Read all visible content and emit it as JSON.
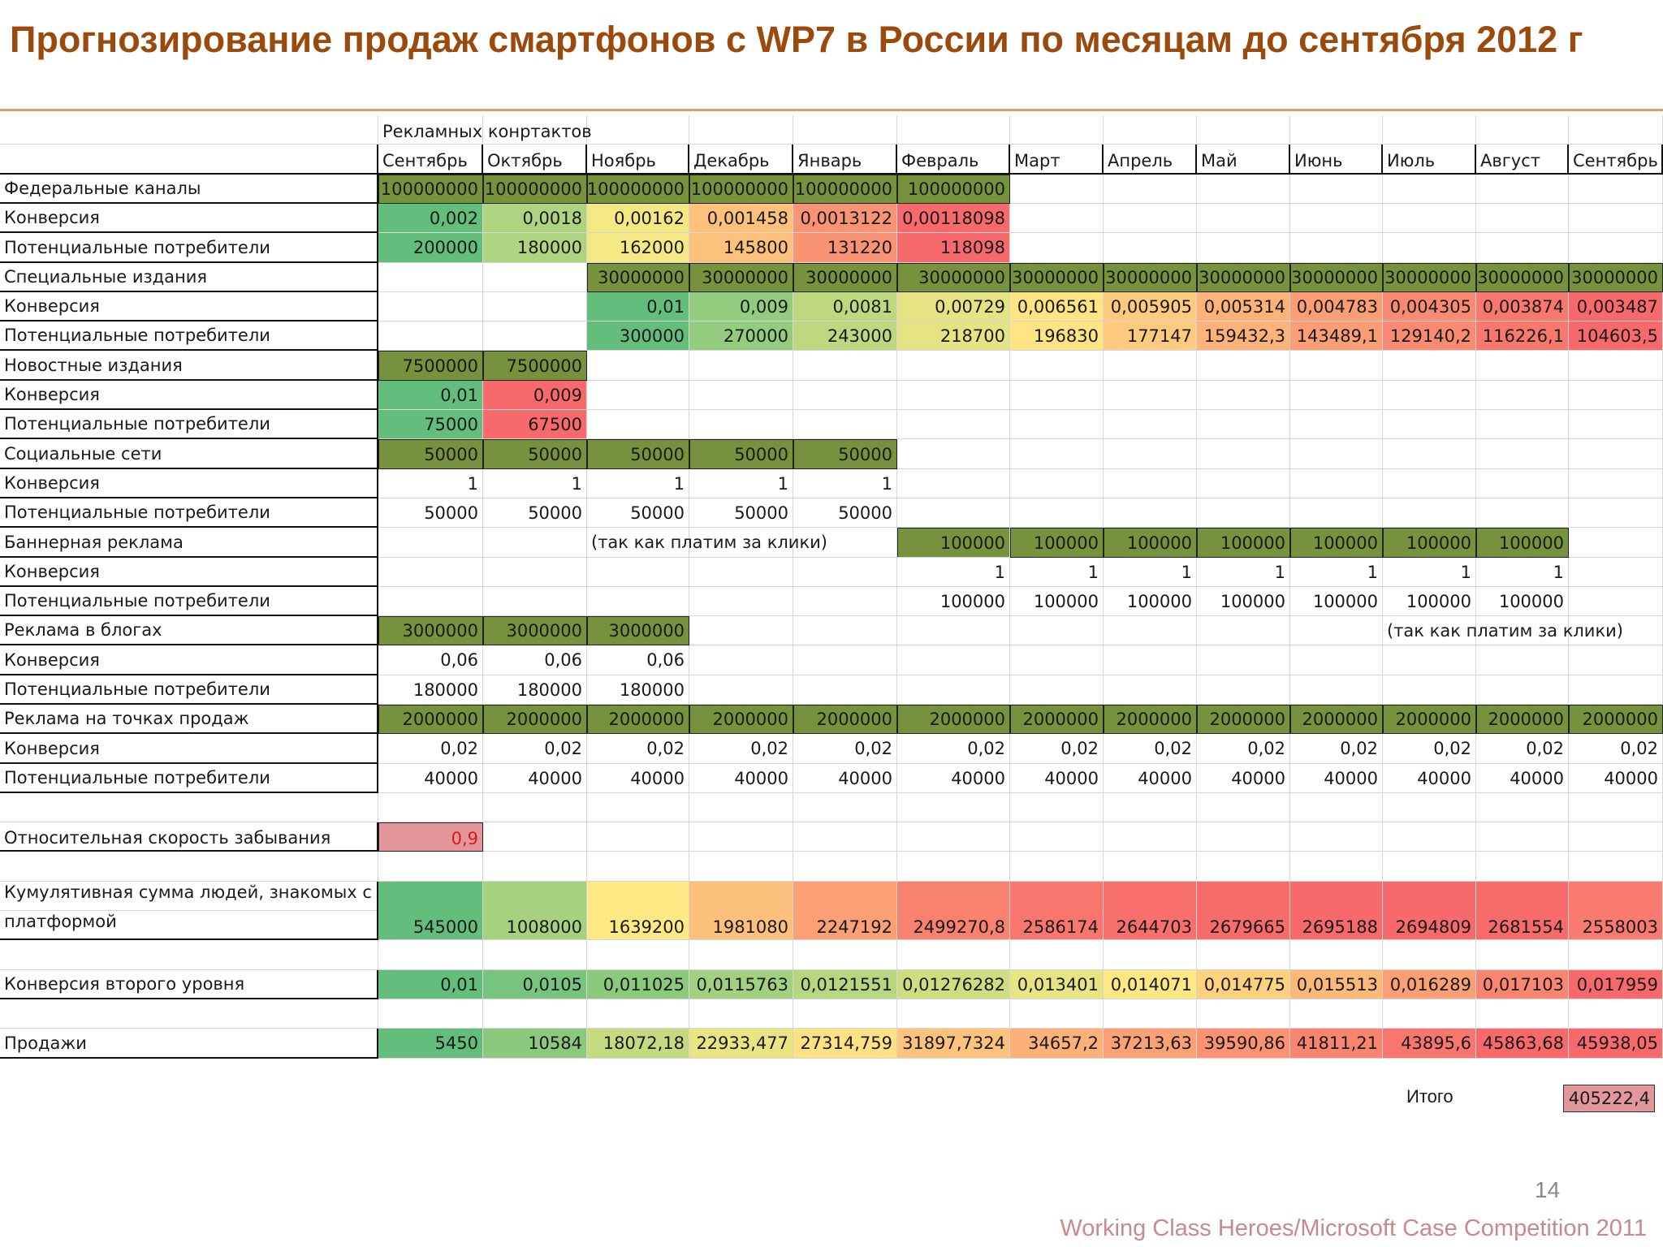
{
  "title": "Прогнозирование продаж смартфонов с WP7 в России по месяцам до сентября 2012 г",
  "table": {
    "header_group": "Рекламных конртактов",
    "months": [
      "Сентябрь",
      "Октябрь",
      "Ноябрь",
      "Декабрь",
      "Январь",
      "Февраль",
      "Март",
      "Апрель",
      "Май",
      "Июнь",
      "Июль",
      "Август",
      "Сентябрь"
    ],
    "rows": [
      {
        "label": "Федеральные каналы",
        "cells": [
          "100000000",
          "100000000",
          "100000000",
          "100000000",
          "100000000",
          "100000000",
          "",
          "",
          "",
          "",
          "",
          "",
          ""
        ]
      },
      {
        "label": "Конверсия",
        "cells": [
          "0,002",
          "0,0018",
          "0,00162",
          "0,001458",
          "0,0013122",
          "0,00118098",
          "",
          "",
          "",
          "",
          "",
          "",
          ""
        ]
      },
      {
        "label": "Потенциальные потребители",
        "cells": [
          "200000",
          "180000",
          "162000",
          "145800",
          "131220",
          "118098",
          "",
          "",
          "",
          "",
          "",
          "",
          ""
        ]
      },
      {
        "label": "Специальные издания",
        "cells": [
          "",
          "",
          "30000000",
          "30000000",
          "30000000",
          "30000000",
          "30000000",
          "30000000",
          "30000000",
          "30000000",
          "30000000",
          "30000000",
          "30000000"
        ]
      },
      {
        "label": "Конверсия",
        "cells": [
          "",
          "",
          "0,01",
          "0,009",
          "0,0081",
          "0,00729",
          "0,006561",
          "0,005905",
          "0,005314",
          "0,004783",
          "0,004305",
          "0,003874",
          "0,003487"
        ]
      },
      {
        "label": "Потенциальные потребители",
        "cells": [
          "",
          "",
          "300000",
          "270000",
          "243000",
          "218700",
          "196830",
          "177147",
          "159432,3",
          "143489,1",
          "129140,2",
          "116226,1",
          "104603,5"
        ]
      },
      {
        "label": "Новостные издания",
        "cells": [
          "7500000",
          "7500000",
          "",
          "",
          "",
          "",
          "",
          "",
          "",
          "",
          "",
          "",
          ""
        ]
      },
      {
        "label": "Конверсия",
        "cells": [
          "0,01",
          "0,009",
          "",
          "",
          "",
          "",
          "",
          "",
          "",
          "",
          "",
          "",
          ""
        ]
      },
      {
        "label": "Потенциальные потребители",
        "cells": [
          "75000",
          "67500",
          "",
          "",
          "",
          "",
          "",
          "",
          "",
          "",
          "",
          "",
          ""
        ]
      },
      {
        "label": "Социальные сети",
        "cells": [
          "50000",
          "50000",
          "50000",
          "50000",
          "50000",
          "",
          "",
          "",
          "",
          "",
          "",
          "",
          ""
        ]
      },
      {
        "label": "Конверсия",
        "cells": [
          "1",
          "1",
          "1",
          "1",
          "1",
          "",
          "",
          "",
          "",
          "",
          "",
          "",
          ""
        ]
      },
      {
        "label": "Потенциальные потребители",
        "cells": [
          "50000",
          "50000",
          "50000",
          "50000",
          "50000",
          "",
          "",
          "",
          "",
          "",
          "",
          "",
          ""
        ]
      },
      {
        "label": "Баннерная реклама",
        "cells": [
          "",
          "",
          "",
          "",
          "",
          "100000",
          "100000",
          "100000",
          "100000",
          "100000",
          "100000",
          "100000",
          ""
        ]
      },
      {
        "label": "Конверсия",
        "cells": [
          "",
          "",
          "",
          "",
          "",
          "1",
          "1",
          "1",
          "1",
          "1",
          "1",
          "1",
          ""
        ]
      },
      {
        "label": "Потенциальные потребители",
        "cells": [
          "",
          "",
          "",
          "",
          "",
          "100000",
          "100000",
          "100000",
          "100000",
          "100000",
          "100000",
          "100000",
          ""
        ]
      },
      {
        "label": "Реклама в блогах",
        "cells": [
          "3000000",
          "3000000",
          "3000000",
          "",
          "",
          "",
          "",
          "",
          "",
          "",
          "",
          "",
          ""
        ]
      },
      {
        "label": "Конверсия",
        "cells": [
          "0,06",
          "0,06",
          "0,06",
          "",
          "",
          "",
          "",
          "",
          "",
          "",
          "",
          "",
          ""
        ]
      },
      {
        "label": "Потенциальные потребители",
        "cells": [
          "180000",
          "180000",
          "180000",
          "",
          "",
          "",
          "",
          "",
          "",
          "",
          "",
          "",
          ""
        ]
      },
      {
        "label": "Реклама на точках продаж",
        "cells": [
          "2000000",
          "2000000",
          "2000000",
          "2000000",
          "2000000",
          "2000000",
          "2000000",
          "2000000",
          "2000000",
          "2000000",
          "2000000",
          "2000000",
          "2000000"
        ]
      },
      {
        "label": "Конверсия",
        "cells": [
          "0,02",
          "0,02",
          "0,02",
          "0,02",
          "0,02",
          "0,02",
          "0,02",
          "0,02",
          "0,02",
          "0,02",
          "0,02",
          "0,02",
          "0,02"
        ]
      },
      {
        "label": "Потенциальные потребители",
        "cells": [
          "40000",
          "40000",
          "40000",
          "40000",
          "40000",
          "40000",
          "40000",
          "40000",
          "40000",
          "40000",
          "40000",
          "40000",
          "40000"
        ]
      }
    ],
    "notes": {
      "banner_left": "(так как платим за клики)",
      "banner_right": "(так как платим за клики)"
    },
    "forgetting": {
      "label": "Относительная скорость забывания",
      "value": "0,9"
    },
    "cumulative": {
      "label": "Кумулятивная сумма людей, знакомых с платформой",
      "cells": [
        "545000",
        "1008000",
        "1639200",
        "1981080",
        "2247192",
        "2499270,8",
        "2586174",
        "2644703",
        "2679665",
        "2695188",
        "2694809",
        "2681554",
        "2558003"
      ]
    },
    "conversion2": {
      "label": "Конверсия второго уровня",
      "cells": [
        "0,01",
        "0,0105",
        "0,011025",
        "0,0115763",
        "0,0121551",
        "0,01276282",
        "0,013401",
        "0,014071",
        "0,014775",
        "0,015513",
        "0,016289",
        "0,017103",
        "0,017959"
      ]
    },
    "sales": {
      "label": "Продажи",
      "cells": [
        "5450",
        "10584",
        "18072,18",
        "22933,477",
        "27314,759",
        "31897,7324",
        "34657,2",
        "37213,63",
        "39590,86",
        "41811,21",
        "43895,6",
        "45863,68",
        "45938,05"
      ]
    },
    "total": {
      "label": "Итого",
      "value": "405222,4"
    }
  },
  "colors": {
    "title": "#9c4a0c",
    "header_green": "#76923c",
    "scale_green": "#63be7b",
    "scale_yellow": "#ffeb84",
    "scale_red": "#f8696b",
    "forget_fill": "#e4979b",
    "total_fill": "#e4979b"
  },
  "page_number": "14",
  "footer": "Working Class Heroes/Microsoft Case Competition 2011"
}
